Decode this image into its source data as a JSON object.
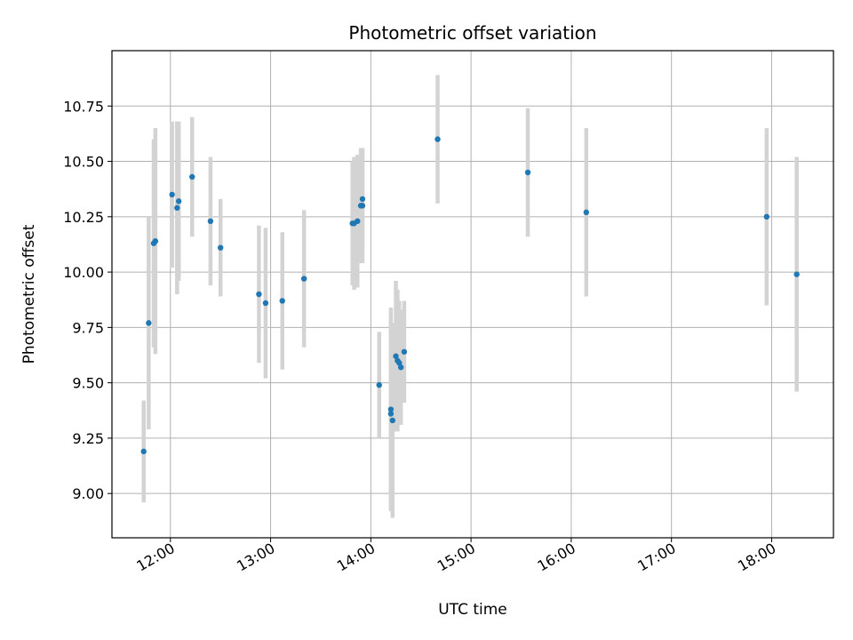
{
  "chart_data": {
    "type": "scatter",
    "title": "Photometric offset variation",
    "xlabel": "UTC time",
    "ylabel": "Photometric offset",
    "x_tick_labels": [
      "12:00",
      "13:00",
      "14:00",
      "15:00",
      "16:00",
      "17:00",
      "18:00"
    ],
    "y_tick_labels": [
      "9.00",
      "9.25",
      "9.50",
      "9.75",
      "10.00",
      "10.25",
      "10.50",
      "10.75"
    ],
    "xlim": [
      "11:25",
      "18:37"
    ],
    "ylim": [
      8.8,
      11.0
    ],
    "grid": true,
    "legend": false,
    "colors": {
      "point": "#1f77b4",
      "errorbar": "#d3d3d3",
      "grid": "#b0b0b0"
    },
    "points": [
      {
        "x": "11:44",
        "y": 9.19,
        "err": 0.23
      },
      {
        "x": "11:47",
        "y": 9.77,
        "err": 0.48
      },
      {
        "x": "11:50",
        "y": 10.13,
        "err": 0.47
      },
      {
        "x": "11:51",
        "y": 10.14,
        "err": 0.51
      },
      {
        "x": "12:01",
        "y": 10.35,
        "err": 0.33
      },
      {
        "x": "12:04",
        "y": 10.29,
        "err": 0.39
      },
      {
        "x": "12:05",
        "y": 10.32,
        "err": 0.36
      },
      {
        "x": "12:13",
        "y": 10.43,
        "err": 0.27
      },
      {
        "x": "12:24",
        "y": 10.23,
        "err": 0.29
      },
      {
        "x": "12:30",
        "y": 10.11,
        "err": 0.22
      },
      {
        "x": "12:53",
        "y": 9.9,
        "err": 0.31
      },
      {
        "x": "12:57",
        "y": 9.86,
        "err": 0.34
      },
      {
        "x": "13:07",
        "y": 9.87,
        "err": 0.31
      },
      {
        "x": "13:20",
        "y": 9.97,
        "err": 0.31
      },
      {
        "x": "13:49",
        "y": 10.22,
        "err": 0.28
      },
      {
        "x": "13:50",
        "y": 10.22,
        "err": 0.3
      },
      {
        "x": "13:52",
        "y": 10.23,
        "err": 0.3
      },
      {
        "x": "13:54",
        "y": 10.3,
        "err": 0.26
      },
      {
        "x": "13:55",
        "y": 10.3,
        "err": 0.26
      },
      {
        "x": "13:55",
        "y": 10.33,
        "err": 0.23
      },
      {
        "x": "14:05",
        "y": 9.49,
        "err": 0.24
      },
      {
        "x": "14:12",
        "y": 9.38,
        "err": 0.46
      },
      {
        "x": "14:12",
        "y": 9.36,
        "err": 0.43
      },
      {
        "x": "14:13",
        "y": 9.33,
        "err": 0.44
      },
      {
        "x": "14:15",
        "y": 9.62,
        "err": 0.34
      },
      {
        "x": "14:16",
        "y": 9.6,
        "err": 0.32
      },
      {
        "x": "14:17",
        "y": 9.59,
        "err": 0.28
      },
      {
        "x": "14:18",
        "y": 9.57,
        "err": 0.26
      },
      {
        "x": "14:20",
        "y": 9.64,
        "err": 0.23
      },
      {
        "x": "14:40",
        "y": 10.6,
        "err": 0.29
      },
      {
        "x": "15:34",
        "y": 10.45,
        "err": 0.29
      },
      {
        "x": "16:09",
        "y": 10.27,
        "err": 0.38
      },
      {
        "x": "17:57",
        "y": 10.25,
        "err": 0.4
      },
      {
        "x": "18:15",
        "y": 9.99,
        "err": 0.53
      }
    ]
  }
}
